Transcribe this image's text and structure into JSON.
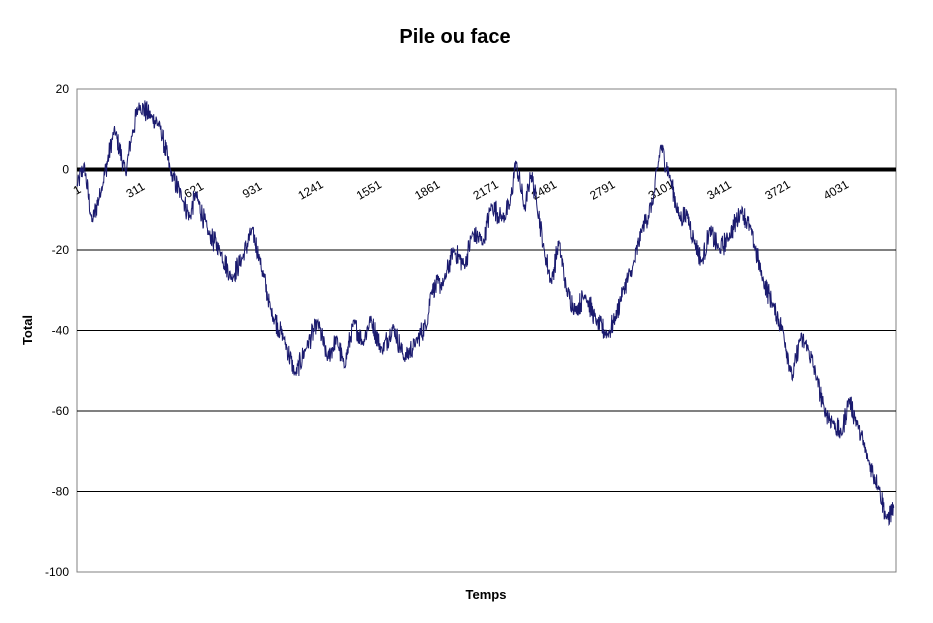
{
  "chart_data": {
    "type": "line",
    "title": "Pile ou face",
    "xlabel": "Temps",
    "ylabel": "Total",
    "ylim": [
      -100,
      20
    ],
    "yticks": [
      20,
      0,
      -20,
      -40,
      -60,
      -80,
      -100
    ],
    "xlim": [
      1,
      4350
    ],
    "xticks": [
      1,
      311,
      621,
      931,
      1241,
      1551,
      1861,
      2171,
      2481,
      2791,
      3101,
      3411,
      3721,
      4031
    ],
    "grid": true,
    "legend": "none",
    "colors": {
      "line": "#1a1a6e",
      "zero_line": "#000000",
      "grid": "#000000"
    },
    "series": [
      {
        "keypoints": [
          [
            1,
            -4
          ],
          [
            40,
            1
          ],
          [
            80,
            -13
          ],
          [
            130,
            -5
          ],
          [
            200,
            10
          ],
          [
            260,
            -1
          ],
          [
            290,
            8
          ],
          [
            330,
            16
          ],
          [
            400,
            13
          ],
          [
            440,
            11
          ],
          [
            500,
            -1
          ],
          [
            560,
            -7
          ],
          [
            600,
            -12
          ],
          [
            630,
            -6
          ],
          [
            700,
            -16
          ],
          [
            760,
            -20
          ],
          [
            820,
            -27
          ],
          [
            880,
            -22
          ],
          [
            931,
            -15
          ],
          [
            970,
            -22
          ],
          [
            1030,
            -35
          ],
          [
            1100,
            -42
          ],
          [
            1160,
            -51
          ],
          [
            1220,
            -44
          ],
          [
            1280,
            -38
          ],
          [
            1330,
            -47
          ],
          [
            1380,
            -42
          ],
          [
            1420,
            -49
          ],
          [
            1470,
            -38
          ],
          [
            1520,
            -43
          ],
          [
            1560,
            -37
          ],
          [
            1620,
            -45
          ],
          [
            1680,
            -39
          ],
          [
            1740,
            -47
          ],
          [
            1800,
            -43
          ],
          [
            1861,
            -38
          ],
          [
            1880,
            -30
          ],
          [
            1950,
            -28
          ],
          [
            2000,
            -20
          ],
          [
            2060,
            -24
          ],
          [
            2100,
            -16
          ],
          [
            2160,
            -18
          ],
          [
            2200,
            -9
          ],
          [
            2260,
            -12
          ],
          [
            2300,
            -9
          ],
          [
            2330,
            2
          ],
          [
            2380,
            -10
          ],
          [
            2410,
            -1
          ],
          [
            2440,
            -7
          ],
          [
            2481,
            -20
          ],
          [
            2520,
            -28
          ],
          [
            2560,
            -18
          ],
          [
            2600,
            -30
          ],
          [
            2650,
            -35
          ],
          [
            2700,
            -31
          ],
          [
            2760,
            -38
          ],
          [
            2820,
            -41
          ],
          [
            2860,
            -37
          ],
          [
            2900,
            -30
          ],
          [
            2950,
            -25
          ],
          [
            3000,
            -15
          ],
          [
            3060,
            -8
          ],
          [
            3101,
            6
          ],
          [
            3150,
            -2
          ],
          [
            3200,
            -12
          ],
          [
            3240,
            -11
          ],
          [
            3280,
            -18
          ],
          [
            3320,
            -23
          ],
          [
            3360,
            -15
          ],
          [
            3411,
            -20
          ],
          [
            3460,
            -17
          ],
          [
            3530,
            -10
          ],
          [
            3580,
            -15
          ],
          [
            3640,
            -27
          ],
          [
            3700,
            -34
          ],
          [
            3750,
            -40
          ],
          [
            3800,
            -52
          ],
          [
            3840,
            -42
          ],
          [
            3880,
            -44
          ],
          [
            3930,
            -52
          ],
          [
            3970,
            -60
          ],
          [
            4020,
            -63
          ],
          [
            4060,
            -66
          ],
          [
            4100,
            -57
          ],
          [
            4150,
            -64
          ],
          [
            4200,
            -72
          ],
          [
            4260,
            -79
          ],
          [
            4300,
            -87
          ],
          [
            4340,
            -84
          ]
        ]
      }
    ]
  }
}
